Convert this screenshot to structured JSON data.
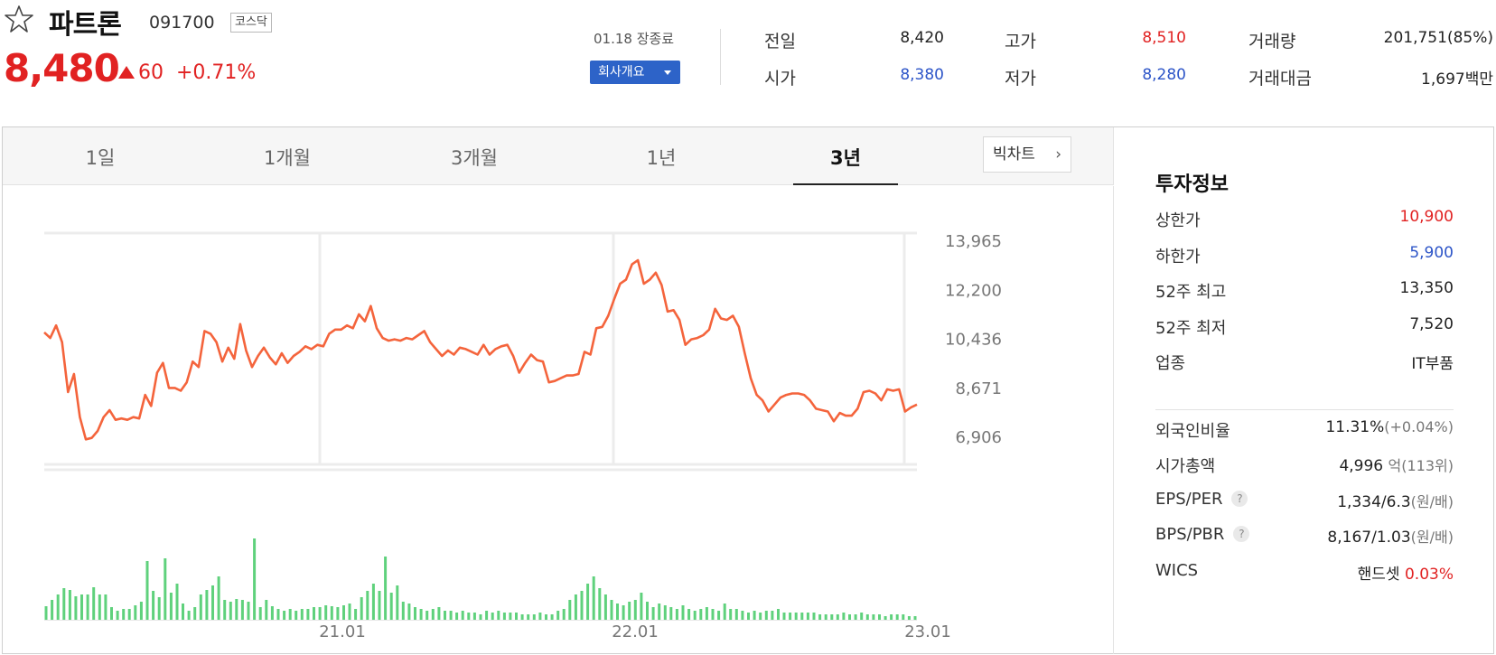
{
  "header": {
    "name": "파트론",
    "code": "091700",
    "market": "코스닥",
    "price": "8,480",
    "change": "60",
    "change_rate": "+0.71%",
    "status": "01.18 장종료",
    "company_button": "회사개요"
  },
  "quotes": {
    "prev_close_label": "전일",
    "prev_close": "8,420",
    "open_label": "시가",
    "open": "8,380",
    "high_label": "고가",
    "high": "8,510",
    "low_label": "저가",
    "low": "8,280",
    "volume_label": "거래량",
    "volume": "201,751(85%)",
    "value_label": "거래대금",
    "value": "1,697백만"
  },
  "tabs": [
    {
      "label": "1일"
    },
    {
      "label": "1개월"
    },
    {
      "label": "3개월"
    },
    {
      "label": "1년"
    },
    {
      "label": "3년"
    }
  ],
  "active_tab": "3년",
  "big_chart_label": "빅차트",
  "chart_data": {
    "type": "line",
    "y_ticks": [
      "13,965",
      "12,200",
      "10,436",
      "8,671",
      "6,906"
    ],
    "ylim": [
      6906,
      13965
    ],
    "x_ticks": [
      "21.01",
      "22.01",
      "23.01"
    ],
    "line_color": "#f4643c",
    "volume_color": "#5fd17c",
    "price_values": [
      10650,
      10450,
      10900,
      10300,
      8500,
      9150,
      7600,
      6800,
      6850,
      7100,
      7600,
      7850,
      7500,
      7550,
      7500,
      7600,
      7550,
      8400,
      8000,
      9200,
      9550,
      8650,
      8650,
      8550,
      8850,
      9600,
      9400,
      10700,
      10600,
      10300,
      9600,
      10100,
      9700,
      10950,
      10000,
      9400,
      9800,
      10100,
      9750,
      9500,
      9900,
      9550,
      9800,
      9950,
      10150,
      10050,
      10200,
      10150,
      10600,
      10750,
      10750,
      10900,
      10800,
      11300,
      11050,
      11600,
      10800,
      10450,
      10350,
      10400,
      10350,
      10450,
      10400,
      10550,
      10700,
      10300,
      10050,
      9800,
      10000,
      9850,
      10100,
      10050,
      9950,
      9850,
      10200,
      9850,
      10050,
      10150,
      10200,
      9800,
      9200,
      9550,
      9850,
      9650,
      9600,
      8850,
      8900,
      9000,
      9100,
      9100,
      9150,
      9950,
      9850,
      10800,
      10850,
      11250,
      11850,
      12400,
      12550,
      13100,
      13250,
      12400,
      12550,
      12800,
      12350,
      11400,
      11450,
      11100,
      10200,
      10400,
      10450,
      10550,
      10750,
      11500,
      11150,
      11100,
      11250,
      10850,
      9900,
      9000,
      8400,
      8200,
      7800,
      8050,
      8300,
      8400,
      8450,
      8450,
      8400,
      8200,
      7900,
      7850,
      7800,
      7450,
      7750,
      7650,
      7650,
      7900,
      8500,
      8550,
      8450,
      8200,
      8600,
      8550,
      8600,
      7800,
      7950,
      8050
    ]
  },
  "info": {
    "title": "투자정보",
    "rows": [
      {
        "label": "상한가",
        "value": "10,900",
        "color": "red"
      },
      {
        "label": "하한가",
        "value": "5,900",
        "color": "blue"
      },
      {
        "label": "52주 최고",
        "value": "13,350"
      },
      {
        "label": "52주 최저",
        "value": "7,520"
      },
      {
        "label": "업종",
        "value": "IT부품"
      }
    ],
    "rows2": [
      {
        "label": "외국인비율",
        "value": "11.31%",
        "unit": "(+0.04%)"
      },
      {
        "label": "시가총액",
        "value": "4,996",
        "unit": "억(113위)"
      },
      {
        "label": "EPS/PER",
        "value": "1,334/6.3",
        "unit": "(원/배)",
        "help": "?"
      },
      {
        "label": "BPS/PBR",
        "value": "8,167/1.03",
        "unit": "(원/배)",
        "help": "?"
      },
      {
        "label": "WICS",
        "value": "핸드셋",
        "value_red": "0.03%"
      }
    ]
  }
}
